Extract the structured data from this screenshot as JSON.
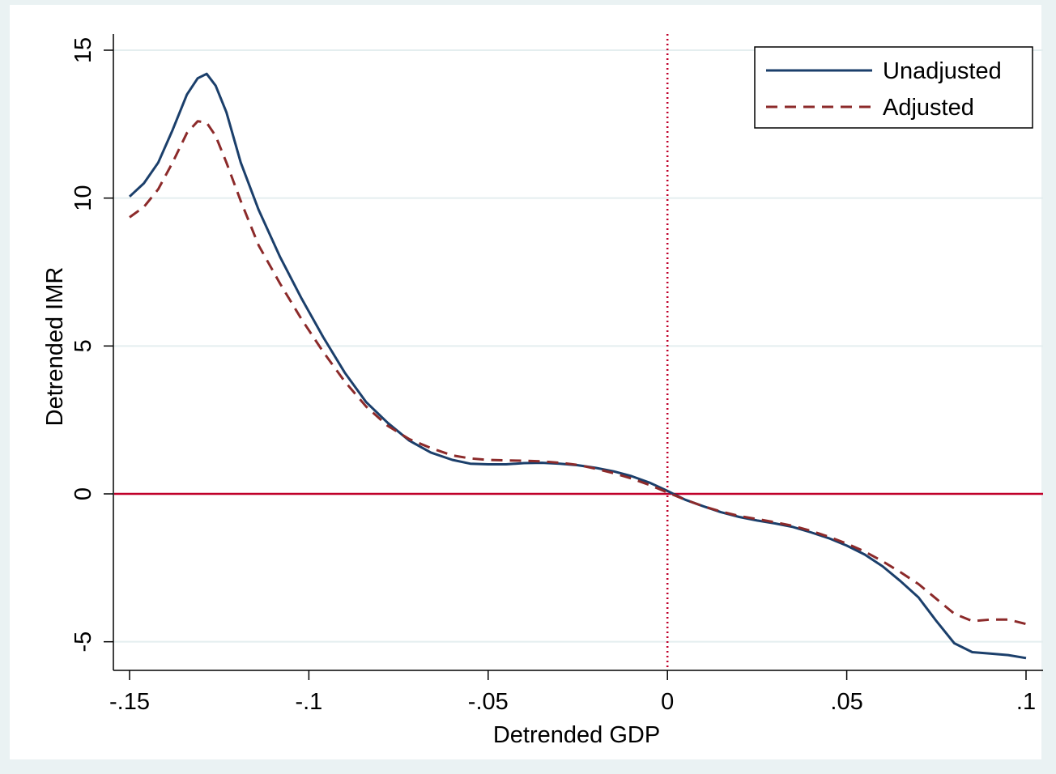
{
  "chart_data": {
    "type": "line",
    "xlabel": "Detrended GDP",
    "ylabel": "Detrended IMR",
    "xlim": [
      -0.155,
      0.104
    ],
    "ylim": [
      -5.6,
      15.5
    ],
    "x_ticks": [
      {
        "value": -0.15,
        "label": "-.15"
      },
      {
        "value": -0.1,
        "label": "-.1"
      },
      {
        "value": -0.05,
        "label": "-.05"
      },
      {
        "value": 0,
        "label": "0"
      },
      {
        "value": 0.05,
        "label": ".05"
      },
      {
        "value": 0.1,
        "label": ".1"
      }
    ],
    "y_ticks": [
      {
        "value": -5,
        "label": "-5"
      },
      {
        "value": 0,
        "label": "0"
      },
      {
        "value": 5,
        "label": "5"
      },
      {
        "value": 10,
        "label": "10"
      },
      {
        "value": 15,
        "label": "15"
      }
    ],
    "grid": "horizontal",
    "legend_position": "top-right",
    "reference_lines": [
      {
        "orientation": "horizontal",
        "value": 0,
        "style": "solid",
        "color": "#c0002a"
      },
      {
        "orientation": "vertical",
        "value": 0,
        "style": "dotted",
        "color": "#c0002a"
      }
    ],
    "series": [
      {
        "name": "Unadjusted",
        "color": "#1b3f6b",
        "style": "solid",
        "points": [
          [
            -0.15,
            10.05
          ],
          [
            -0.146,
            10.5
          ],
          [
            -0.142,
            11.2
          ],
          [
            -0.138,
            12.3
          ],
          [
            -0.134,
            13.5
          ],
          [
            -0.131,
            14.05
          ],
          [
            -0.1285,
            14.2
          ],
          [
            -0.126,
            13.8
          ],
          [
            -0.123,
            12.9
          ],
          [
            -0.119,
            11.2
          ],
          [
            -0.114,
            9.6
          ],
          [
            -0.108,
            8.0
          ],
          [
            -0.102,
            6.6
          ],
          [
            -0.096,
            5.3
          ],
          [
            -0.09,
            4.1
          ],
          [
            -0.084,
            3.1
          ],
          [
            -0.078,
            2.4
          ],
          [
            -0.072,
            1.8
          ],
          [
            -0.066,
            1.4
          ],
          [
            -0.06,
            1.15
          ],
          [
            -0.055,
            1.02
          ],
          [
            -0.05,
            1.0
          ],
          [
            -0.045,
            1.0
          ],
          [
            -0.04,
            1.04
          ],
          [
            -0.035,
            1.05
          ],
          [
            -0.03,
            1.02
          ],
          [
            -0.025,
            0.97
          ],
          [
            -0.02,
            0.88
          ],
          [
            -0.015,
            0.76
          ],
          [
            -0.01,
            0.6
          ],
          [
            -0.005,
            0.38
          ],
          [
            0,
            0.1
          ],
          [
            0.005,
            -0.2
          ],
          [
            0.01,
            -0.42
          ],
          [
            0.015,
            -0.62
          ],
          [
            0.02,
            -0.78
          ],
          [
            0.025,
            -0.9
          ],
          [
            0.03,
            -1.0
          ],
          [
            0.035,
            -1.12
          ],
          [
            0.04,
            -1.3
          ],
          [
            0.045,
            -1.5
          ],
          [
            0.05,
            -1.75
          ],
          [
            0.055,
            -2.05
          ],
          [
            0.06,
            -2.45
          ],
          [
            0.065,
            -2.95
          ],
          [
            0.07,
            -3.5
          ],
          [
            0.075,
            -4.3
          ],
          [
            0.08,
            -5.05
          ],
          [
            0.085,
            -5.35
          ],
          [
            0.09,
            -5.4
          ],
          [
            0.095,
            -5.45
          ],
          [
            0.1,
            -5.55
          ]
        ]
      },
      {
        "name": "Adjusted",
        "color": "#8c2a2a",
        "style": "dashed",
        "points": [
          [
            -0.15,
            9.35
          ],
          [
            -0.146,
            9.7
          ],
          [
            -0.142,
            10.3
          ],
          [
            -0.138,
            11.2
          ],
          [
            -0.134,
            12.2
          ],
          [
            -0.131,
            12.6
          ],
          [
            -0.1285,
            12.55
          ],
          [
            -0.126,
            12.1
          ],
          [
            -0.123,
            11.2
          ],
          [
            -0.119,
            9.9
          ],
          [
            -0.114,
            8.4
          ],
          [
            -0.108,
            7.1
          ],
          [
            -0.102,
            5.9
          ],
          [
            -0.096,
            4.8
          ],
          [
            -0.09,
            3.8
          ],
          [
            -0.084,
            2.95
          ],
          [
            -0.078,
            2.3
          ],
          [
            -0.072,
            1.85
          ],
          [
            -0.066,
            1.55
          ],
          [
            -0.06,
            1.3
          ],
          [
            -0.055,
            1.2
          ],
          [
            -0.05,
            1.15
          ],
          [
            -0.045,
            1.13
          ],
          [
            -0.04,
            1.12
          ],
          [
            -0.035,
            1.1
          ],
          [
            -0.03,
            1.05
          ],
          [
            -0.025,
            0.98
          ],
          [
            -0.02,
            0.85
          ],
          [
            -0.015,
            0.7
          ],
          [
            -0.01,
            0.52
          ],
          [
            -0.005,
            0.3
          ],
          [
            0,
            0.05
          ],
          [
            0.005,
            -0.2
          ],
          [
            0.01,
            -0.42
          ],
          [
            0.015,
            -0.6
          ],
          [
            0.02,
            -0.75
          ],
          [
            0.025,
            -0.85
          ],
          [
            0.03,
            -0.96
          ],
          [
            0.035,
            -1.08
          ],
          [
            0.04,
            -1.25
          ],
          [
            0.045,
            -1.45
          ],
          [
            0.05,
            -1.68
          ],
          [
            0.055,
            -1.95
          ],
          [
            0.06,
            -2.28
          ],
          [
            0.065,
            -2.65
          ],
          [
            0.07,
            -3.05
          ],
          [
            0.075,
            -3.55
          ],
          [
            0.08,
            -4.05
          ],
          [
            0.085,
            -4.3
          ],
          [
            0.09,
            -4.25
          ],
          [
            0.095,
            -4.25
          ],
          [
            0.1,
            -4.4
          ]
        ]
      }
    ]
  }
}
